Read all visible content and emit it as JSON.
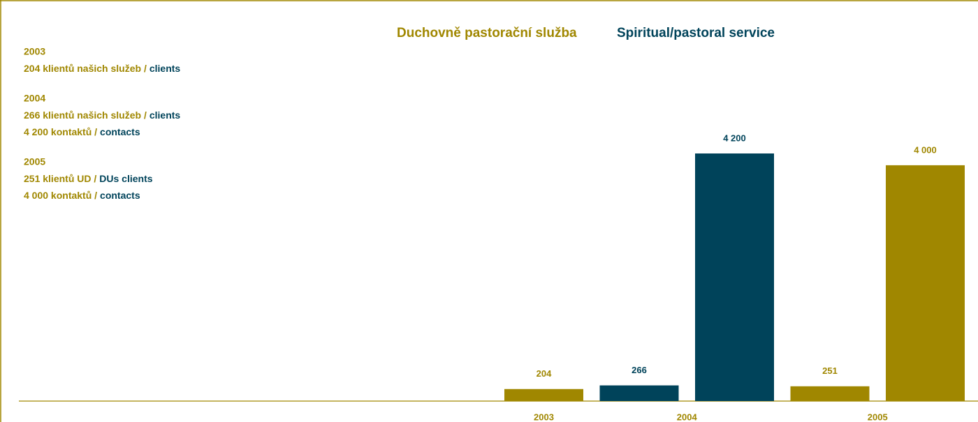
{
  "chart_data": {
    "type": "bar",
    "title": "Duchovně pastorační služba",
    "subtitle": "Spiritual/pastoral service",
    "notes": [
      {
        "year": "2003",
        "lines": [
          {
            "cz": "204 klientů našich služeb /",
            "en": "clients"
          }
        ]
      },
      {
        "year": "2004",
        "lines": [
          {
            "cz": "266 klientů našich služeb /",
            "en": "clients"
          },
          {
            "cz": "4 200 kontaktů /",
            "en": "contacts"
          }
        ]
      },
      {
        "year": "2005",
        "lines": [
          {
            "cz": "251 klientů UD /",
            "en": "DUs clients"
          },
          {
            "cz": "4 000 kontaktů /",
            "en": "contacts"
          }
        ]
      }
    ],
    "groups": [
      {
        "label": "2003",
        "values": [
          204
        ],
        "value_labels": [
          "204"
        ],
        "colors": [
          "#a08700"
        ]
      },
      {
        "label": "2004",
        "values": [
          266,
          4200
        ],
        "value_labels": [
          "266",
          "4 200"
        ],
        "colors": [
          "#00435a",
          "#00435a"
        ]
      },
      {
        "label": "2005",
        "values": [
          251,
          4000
        ],
        "value_labels": [
          "251",
          "4 000"
        ],
        "colors": [
          "#a08700",
          "#a08700"
        ]
      }
    ]
  }
}
